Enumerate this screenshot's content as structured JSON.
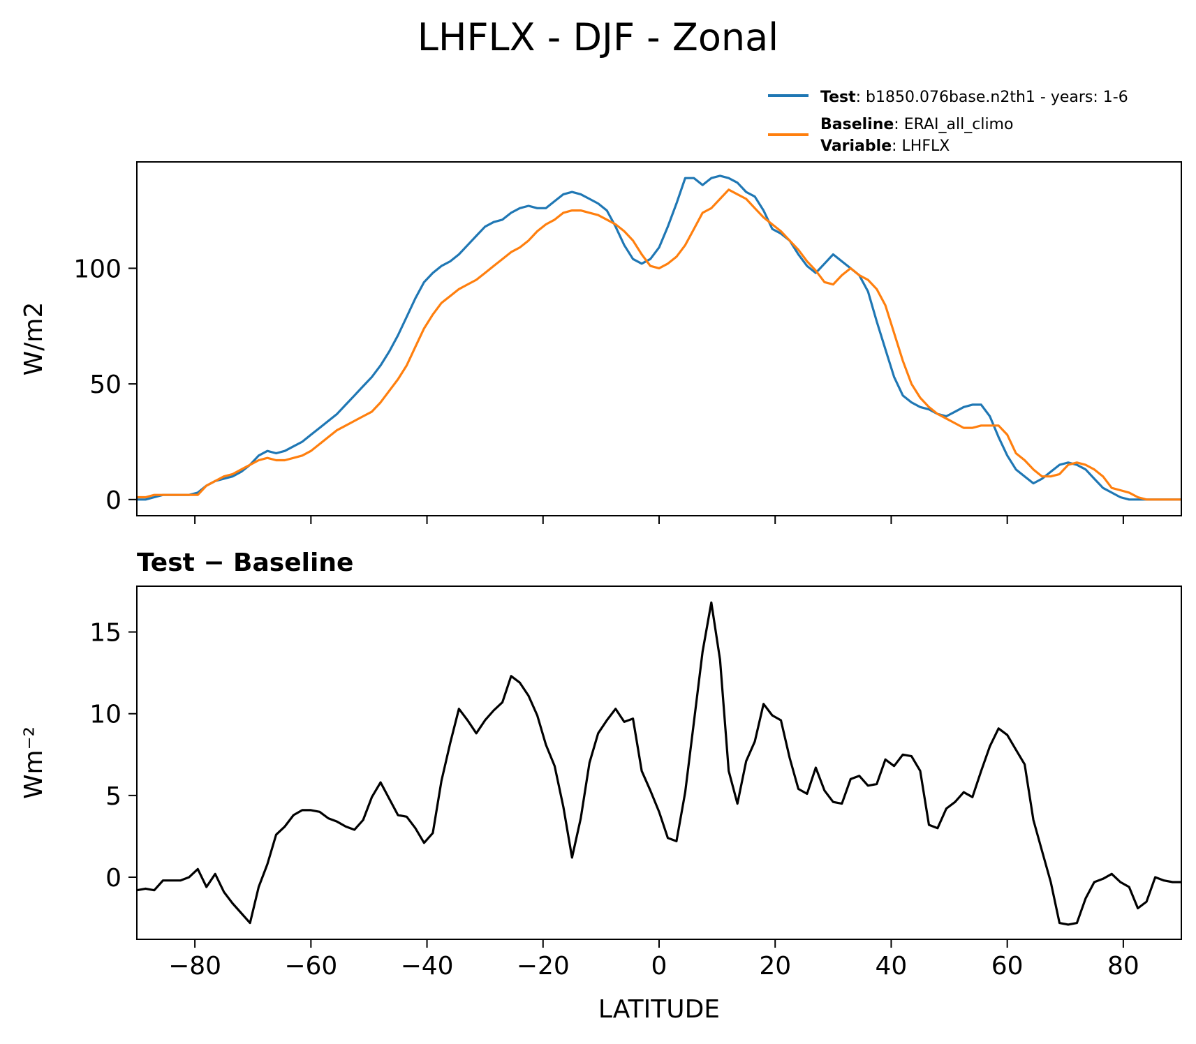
{
  "figure": {
    "title": "LHFLX - DJF - Zonal"
  },
  "legend": {
    "placement": "top-right",
    "entries": [
      {
        "bold": "Test",
        "text": ": b1850.076base.n2th1 - years: 1-6",
        "color": "#1f77b4"
      },
      {
        "bold": "Baseline",
        "text": ": ERAI_all_climo",
        "bold2": "Variable",
        "text2": ": LHFLX",
        "color": "#ff7f0e"
      }
    ]
  },
  "chart_data": [
    {
      "type": "line",
      "title": "",
      "xlabel": "",
      "ylabel": "W/m2",
      "xlim": [
        -90,
        90
      ],
      "ylim": [
        -7,
        146
      ],
      "yticks": [
        0,
        50,
        100
      ],
      "xticks": [
        -80,
        -60,
        -40,
        -20,
        0,
        20,
        40,
        60,
        80
      ],
      "show_xticklabels": false,
      "x": [
        -90,
        -88.5,
        -87,
        -85.5,
        -84,
        -82.5,
        -81,
        -79.5,
        -78,
        -76.5,
        -75,
        -73.5,
        -72,
        -70.5,
        -69,
        -67.5,
        -66,
        -64.5,
        -63,
        -61.5,
        -60,
        -58.5,
        -57,
        -55.5,
        -54,
        -52.5,
        -51,
        -49.5,
        -48,
        -46.5,
        -45,
        -43.5,
        -42,
        -40.5,
        -39,
        -37.5,
        -36,
        -34.5,
        -33,
        -31.5,
        -30,
        -28.5,
        -27,
        -25.5,
        -24,
        -22.5,
        -21,
        -19.5,
        -18,
        -16.5,
        -15,
        -13.5,
        -12,
        -10.5,
        -9,
        -7.5,
        -6,
        -4.5,
        -3,
        -1.5,
        0,
        1.5,
        3,
        4.5,
        6,
        7.5,
        9,
        10.5,
        12,
        13.5,
        15,
        16.5,
        18,
        19.5,
        21,
        22.5,
        24,
        25.5,
        27,
        28.5,
        30,
        31.5,
        33,
        34.5,
        36,
        37.5,
        39,
        40.5,
        42,
        43.5,
        45,
        46.5,
        48,
        49.5,
        51,
        52.5,
        54,
        55.5,
        57,
        58.5,
        60,
        61.5,
        63,
        64.5,
        66,
        67.5,
        69,
        70.5,
        72,
        73.5,
        75,
        76.5,
        78,
        79.5,
        81,
        82.5,
        84,
        85.5,
        87,
        88.5,
        90
      ],
      "series": [
        {
          "name": "Test",
          "color": "#1f77b4",
          "values": [
            0,
            0,
            1,
            2,
            2,
            2,
            2,
            3,
            6,
            8,
            9,
            10,
            12,
            15,
            19,
            21,
            20,
            21,
            23,
            25,
            28,
            31,
            34,
            37,
            41,
            45,
            49,
            53,
            58,
            64,
            71,
            79,
            87,
            94,
            98,
            101,
            103,
            106,
            110,
            114,
            118,
            120,
            121,
            124,
            126,
            127,
            126,
            126,
            129,
            132,
            133,
            132,
            130,
            128,
            125,
            118,
            110,
            104,
            102,
            104,
            109,
            118,
            128,
            139,
            139,
            136,
            139,
            140,
            139,
            137,
            133,
            131,
            125,
            117,
            115,
            112,
            106,
            101,
            98,
            102,
            106,
            103,
            100,
            97,
            90,
            77,
            65,
            53,
            45,
            42,
            40,
            39,
            37,
            36,
            38,
            40,
            41,
            41,
            36,
            27,
            19,
            13,
            10,
            7,
            9,
            12,
            15,
            16,
            15,
            13,
            9,
            5,
            3,
            1,
            0,
            0,
            0,
            0,
            0,
            0,
            0
          ]
        },
        {
          "name": "Baseline",
          "color": "#ff7f0e",
          "values": [
            1,
            1,
            2,
            2,
            2,
            2,
            2,
            2,
            6,
            8,
            10,
            11,
            13,
            15,
            17,
            18,
            17,
            17,
            18,
            19,
            21,
            24,
            27,
            30,
            32,
            34,
            36,
            38,
            42,
            47,
            52,
            58,
            66,
            74,
            80,
            85,
            88,
            91,
            93,
            95,
            98,
            101,
            104,
            107,
            109,
            112,
            116,
            119,
            121,
            124,
            125,
            125,
            124,
            123,
            121,
            119,
            116,
            112,
            106,
            101,
            100,
            102,
            105,
            110,
            117,
            124,
            126,
            130,
            134,
            132,
            130,
            126,
            122,
            119,
            116,
            112,
            108,
            103,
            99,
            94,
            93,
            97,
            100,
            97,
            95,
            91,
            84,
            72,
            60,
            50,
            44,
            40,
            37,
            35,
            33,
            31,
            31,
            32,
            32,
            32,
            28,
            20,
            17,
            13,
            10,
            10,
            11,
            15,
            16,
            15,
            13,
            10,
            5,
            4,
            3,
            1,
            0,
            0,
            0,
            0,
            0
          ]
        }
      ]
    },
    {
      "type": "line",
      "title": "Test − Baseline",
      "xlabel": "LATITUDE",
      "ylabel": "Wm⁻²",
      "xlim": [
        -90,
        90
      ],
      "ylim": [
        -3.8,
        17.8
      ],
      "yticks": [
        0,
        5,
        10,
        15
      ],
      "xticks": [
        -80,
        -60,
        -40,
        -20,
        0,
        20,
        40,
        60,
        80
      ],
      "show_xticklabels": true,
      "x": [
        -90,
        -88.5,
        -87,
        -85.5,
        -84,
        -82.5,
        -81,
        -79.5,
        -78,
        -76.5,
        -75,
        -73.5,
        -72,
        -70.5,
        -69,
        -67.5,
        -66,
        -64.5,
        -63,
        -61.5,
        -60,
        -58.5,
        -57,
        -55.5,
        -54,
        -52.5,
        -51,
        -49.5,
        -48,
        -46.5,
        -45,
        -43.5,
        -42,
        -40.5,
        -39,
        -37.5,
        -36,
        -34.5,
        -33,
        -31.5,
        -30,
        -28.5,
        -27,
        -25.5,
        -24,
        -22.5,
        -21,
        -19.5,
        -18,
        -16.5,
        -15,
        -13.5,
        -12,
        -10.5,
        -9,
        -7.5,
        -6,
        -4.5,
        -3,
        -1.5,
        0,
        1.5,
        3,
        4.5,
        6,
        7.5,
        9,
        10.5,
        12,
        13.5,
        15,
        16.5,
        18,
        19.5,
        21,
        22.5,
        24,
        25.5,
        27,
        28.5,
        30,
        31.5,
        33,
        34.5,
        36,
        37.5,
        39,
        40.5,
        42,
        43.5,
        45,
        46.5,
        48,
        49.5,
        51,
        52.5,
        54,
        55.5,
        57,
        58.5,
        60,
        61.5,
        63,
        64.5,
        66,
        67.5,
        69,
        70.5,
        72,
        73.5,
        75,
        76.5,
        78,
        79.5,
        81,
        82.5,
        84,
        85.5,
        87,
        88.5,
        90
      ],
      "series": [
        {
          "color": "#000000",
          "values": [
            -0.8,
            -0.7,
            -0.8,
            -0.2,
            -0.2,
            -0.2,
            0,
            0.5,
            -0.6,
            0.2,
            -0.9,
            -1.6,
            -2.2,
            -2.8,
            -0.6,
            0.8,
            2.6,
            3.1,
            3.8,
            4.1,
            4.1,
            4,
            3.6,
            3.4,
            3.1,
            2.9,
            3.5,
            4.9,
            5.8,
            4.8,
            3.8,
            3.7,
            3.0,
            2.1,
            2.7,
            5.9,
            8.2,
            10.3,
            9.6,
            8.8,
            9.6,
            10.2,
            10.7,
            12.3,
            11.9,
            11.1,
            9.9,
            8.1,
            6.8,
            4.3,
            1.2,
            3.6,
            7.0,
            8.8,
            9.6,
            10.3,
            9.5,
            9.7,
            6.5,
            5.3,
            4,
            2.4,
            2.2,
            5.2,
            9.5,
            13.8,
            16.8,
            13.3,
            6.5,
            4.5,
            7.1,
            8.3,
            10.6,
            9.9,
            9.6,
            7.3,
            5.4,
            5.1,
            6.7,
            5.3,
            4.6,
            4.5,
            6.0,
            6.2,
            5.6,
            5.7,
            7.2,
            6.8,
            7.5,
            7.4,
            6.5,
            3.2,
            3.0,
            4.2,
            4.6,
            5.2,
            4.9,
            6.5,
            8.0,
            9.1,
            8.7,
            7.8,
            6.9,
            3.5,
            1.6,
            -0.3,
            -2.8,
            -2.9,
            -2.8,
            -1.3,
            -0.3,
            -0.1,
            0.2,
            -0.3,
            -0.6,
            -1.9,
            -1.5,
            0,
            -0.2,
            -0.3,
            -0.3
          ]
        }
      ]
    }
  ]
}
